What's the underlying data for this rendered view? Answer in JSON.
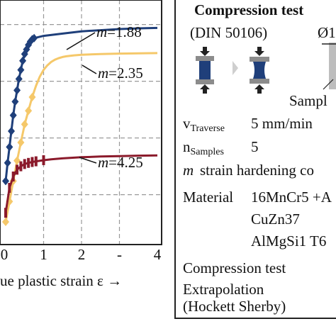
{
  "chart_data": {
    "type": "line",
    "x_ticks": [
      "0",
      "1",
      "2",
      "-",
      "4"
    ],
    "xlabel": "ue plastic strain ε →",
    "xlim": [
      0,
      4
    ],
    "grid": true,
    "series": [
      {
        "name": "m=1.88",
        "color": "#1f3f7a",
        "x": [
          0.0,
          0.05,
          0.1,
          0.15,
          0.2,
          0.25,
          0.3,
          0.35,
          0.4,
          0.45,
          0.5,
          0.55,
          0.6,
          0.65,
          0.7,
          0.75,
          1.0,
          1.5,
          2.0,
          2.5,
          3.0,
          3.5,
          4.0
        ],
        "y": [
          0.28,
          0.36,
          0.43,
          0.5,
          0.57,
          0.63,
          0.68,
          0.73,
          0.77,
          0.81,
          0.84,
          0.86,
          0.88,
          0.895,
          0.905,
          0.91,
          0.92,
          0.93,
          0.94,
          0.945,
          0.95,
          0.953,
          0.955
        ],
        "markers_until": 0.75
      },
      {
        "name": "m=2.35",
        "color": "#f5c86a",
        "x": [
          0.0,
          0.1,
          0.2,
          0.3,
          0.4,
          0.5,
          0.6,
          0.7,
          0.8,
          0.9,
          1.0,
          1.1,
          1.2,
          1.3,
          1.4,
          1.5,
          1.6,
          1.8,
          2.0,
          2.5,
          3.0,
          3.5,
          4.0
        ],
        "y": [
          0.1,
          0.19,
          0.28,
          0.37,
          0.45,
          0.53,
          0.59,
          0.65,
          0.7,
          0.74,
          0.77,
          0.79,
          0.805,
          0.815,
          0.822,
          0.827,
          0.83,
          0.834,
          0.837,
          0.84,
          0.842,
          0.843,
          0.844
        ],
        "markers_until": 0.75
      },
      {
        "name": "m=4.25",
        "color": "#8b1a2b",
        "x": [
          0.0,
          0.1,
          0.2,
          0.3,
          0.4,
          0.5,
          0.6,
          0.7,
          0.8,
          1.0,
          1.2,
          1.5,
          2.0,
          2.5,
          3.0,
          3.5,
          4.0
        ],
        "y": [
          0.14,
          0.25,
          0.3,
          0.33,
          0.345,
          0.355,
          0.36,
          0.364,
          0.367,
          0.372,
          0.376,
          0.38,
          0.385,
          0.388,
          0.39,
          0.392,
          0.393
        ],
        "markers_until": 1.0
      }
    ],
    "annotations": [
      {
        "label": "m",
        "value": "=1.88"
      },
      {
        "label": "m",
        "value": "=2.35"
      },
      {
        "label": "m",
        "value": "=4.25"
      }
    ]
  },
  "panel": {
    "title": "Compression test",
    "standard": "(DIN 50106)",
    "diameter": "Ø1",
    "sample_label": "Sampl",
    "v_symbol": "v",
    "v_sub": "Traverse",
    "v_value": "5 mm/min",
    "n_symbol": "n",
    "n_sub": "Samples",
    "n_value": "5",
    "m_symbol": "m",
    "m_desc": "strain hardening co",
    "material_label": "Material",
    "materials": [
      "16MnCr5 +A",
      "CuZn37",
      "AlMgSi1 T6"
    ],
    "legend_compression": "Compression test",
    "legend_extrapolation": "Extrapolation",
    "legend_hockett": "(Hockett Sherby)"
  },
  "colors": {
    "navy": "#1f3f7a",
    "gold": "#f5c86a",
    "crimson": "#8b1a2b",
    "sample_blue": "#1f3f7a",
    "press_grey": "#8c8c8c"
  }
}
